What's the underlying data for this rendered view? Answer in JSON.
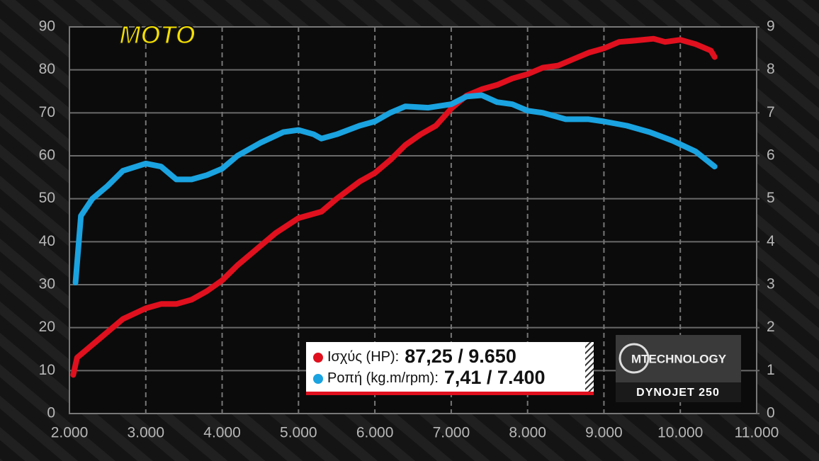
{
  "chart_data": {
    "type": "line",
    "brand": "MOTO",
    "badge": {
      "title": "MTECHNOLOGY",
      "subtitle": "DYNOJET 250"
    },
    "xlim": [
      2000,
      11000
    ],
    "xticks": [
      {
        "value": 2000,
        "label": "2.000"
      },
      {
        "value": 3000,
        "label": "3.000"
      },
      {
        "value": 4000,
        "label": "4.000"
      },
      {
        "value": 5000,
        "label": "5.000"
      },
      {
        "value": 6000,
        "label": "6.000"
      },
      {
        "value": 7000,
        "label": "7.000"
      },
      {
        "value": 8000,
        "label": "8.000"
      },
      {
        "value": 9000,
        "label": "9.000"
      },
      {
        "value": 10000,
        "label": "10.000"
      },
      {
        "value": 11000,
        "label": "11.000"
      }
    ],
    "ylim": [
      0,
      90
    ],
    "yticks": [
      0,
      10,
      20,
      30,
      40,
      50,
      60,
      70,
      80,
      90
    ],
    "y2lim": [
      0,
      9
    ],
    "y2ticks": [
      0,
      1,
      2,
      3,
      4,
      5,
      6,
      7,
      8,
      9
    ],
    "grid": true,
    "series": [
      {
        "name": "Ισχύς (HP):",
        "peak_label": "87,25 / 9.650",
        "color": "#e0101e",
        "x": [
          2050,
          2100,
          2300,
          2500,
          2700,
          3000,
          3200,
          3400,
          3600,
          3800,
          4000,
          4200,
          4500,
          4700,
          5000,
          5300,
          5500,
          5800,
          6000,
          6200,
          6400,
          6600,
          6800,
          7000,
          7200,
          7400,
          7600,
          7800,
          8000,
          8200,
          8400,
          8600,
          8800,
          9000,
          9200,
          9400,
          9650,
          9800,
          10000,
          10200,
          10400,
          10450
        ],
        "values": [
          9,
          13,
          16,
          19,
          22,
          24.5,
          25.5,
          25.5,
          26.5,
          28.5,
          31,
          34.5,
          39,
          42,
          45.5,
          47,
          50,
          54,
          56,
          59,
          62.5,
          65,
          67,
          71,
          74,
          75.5,
          76.5,
          78,
          79,
          80.5,
          81,
          82.5,
          84,
          85,
          86.5,
          86.8,
          87.25,
          86.5,
          87,
          86,
          84.5,
          83
        ]
      },
      {
        "name": "Ροπή (kg.m/rpm):",
        "peak_label": "7,41 / 7.400",
        "color": "#1aa3e0",
        "axis": "y2",
        "x": [
          2080,
          2150,
          2300,
          2500,
          2700,
          3000,
          3200,
          3400,
          3600,
          3800,
          4000,
          4200,
          4500,
          4800,
          5000,
          5200,
          5300,
          5500,
          5800,
          6000,
          6200,
          6400,
          6700,
          7000,
          7200,
          7400,
          7600,
          7800,
          8000,
          8200,
          8500,
          8800,
          9000,
          9300,
          9600,
          9900,
          10200,
          10450
        ],
        "values": [
          3.05,
          4.6,
          5.0,
          5.3,
          5.65,
          5.82,
          5.75,
          5.45,
          5.45,
          5.55,
          5.7,
          6.0,
          6.3,
          6.55,
          6.6,
          6.5,
          6.4,
          6.5,
          6.7,
          6.8,
          7.0,
          7.15,
          7.12,
          7.2,
          7.38,
          7.41,
          7.25,
          7.2,
          7.05,
          7.0,
          6.85,
          6.85,
          6.8,
          6.7,
          6.55,
          6.35,
          6.1,
          5.75
        ]
      }
    ]
  }
}
